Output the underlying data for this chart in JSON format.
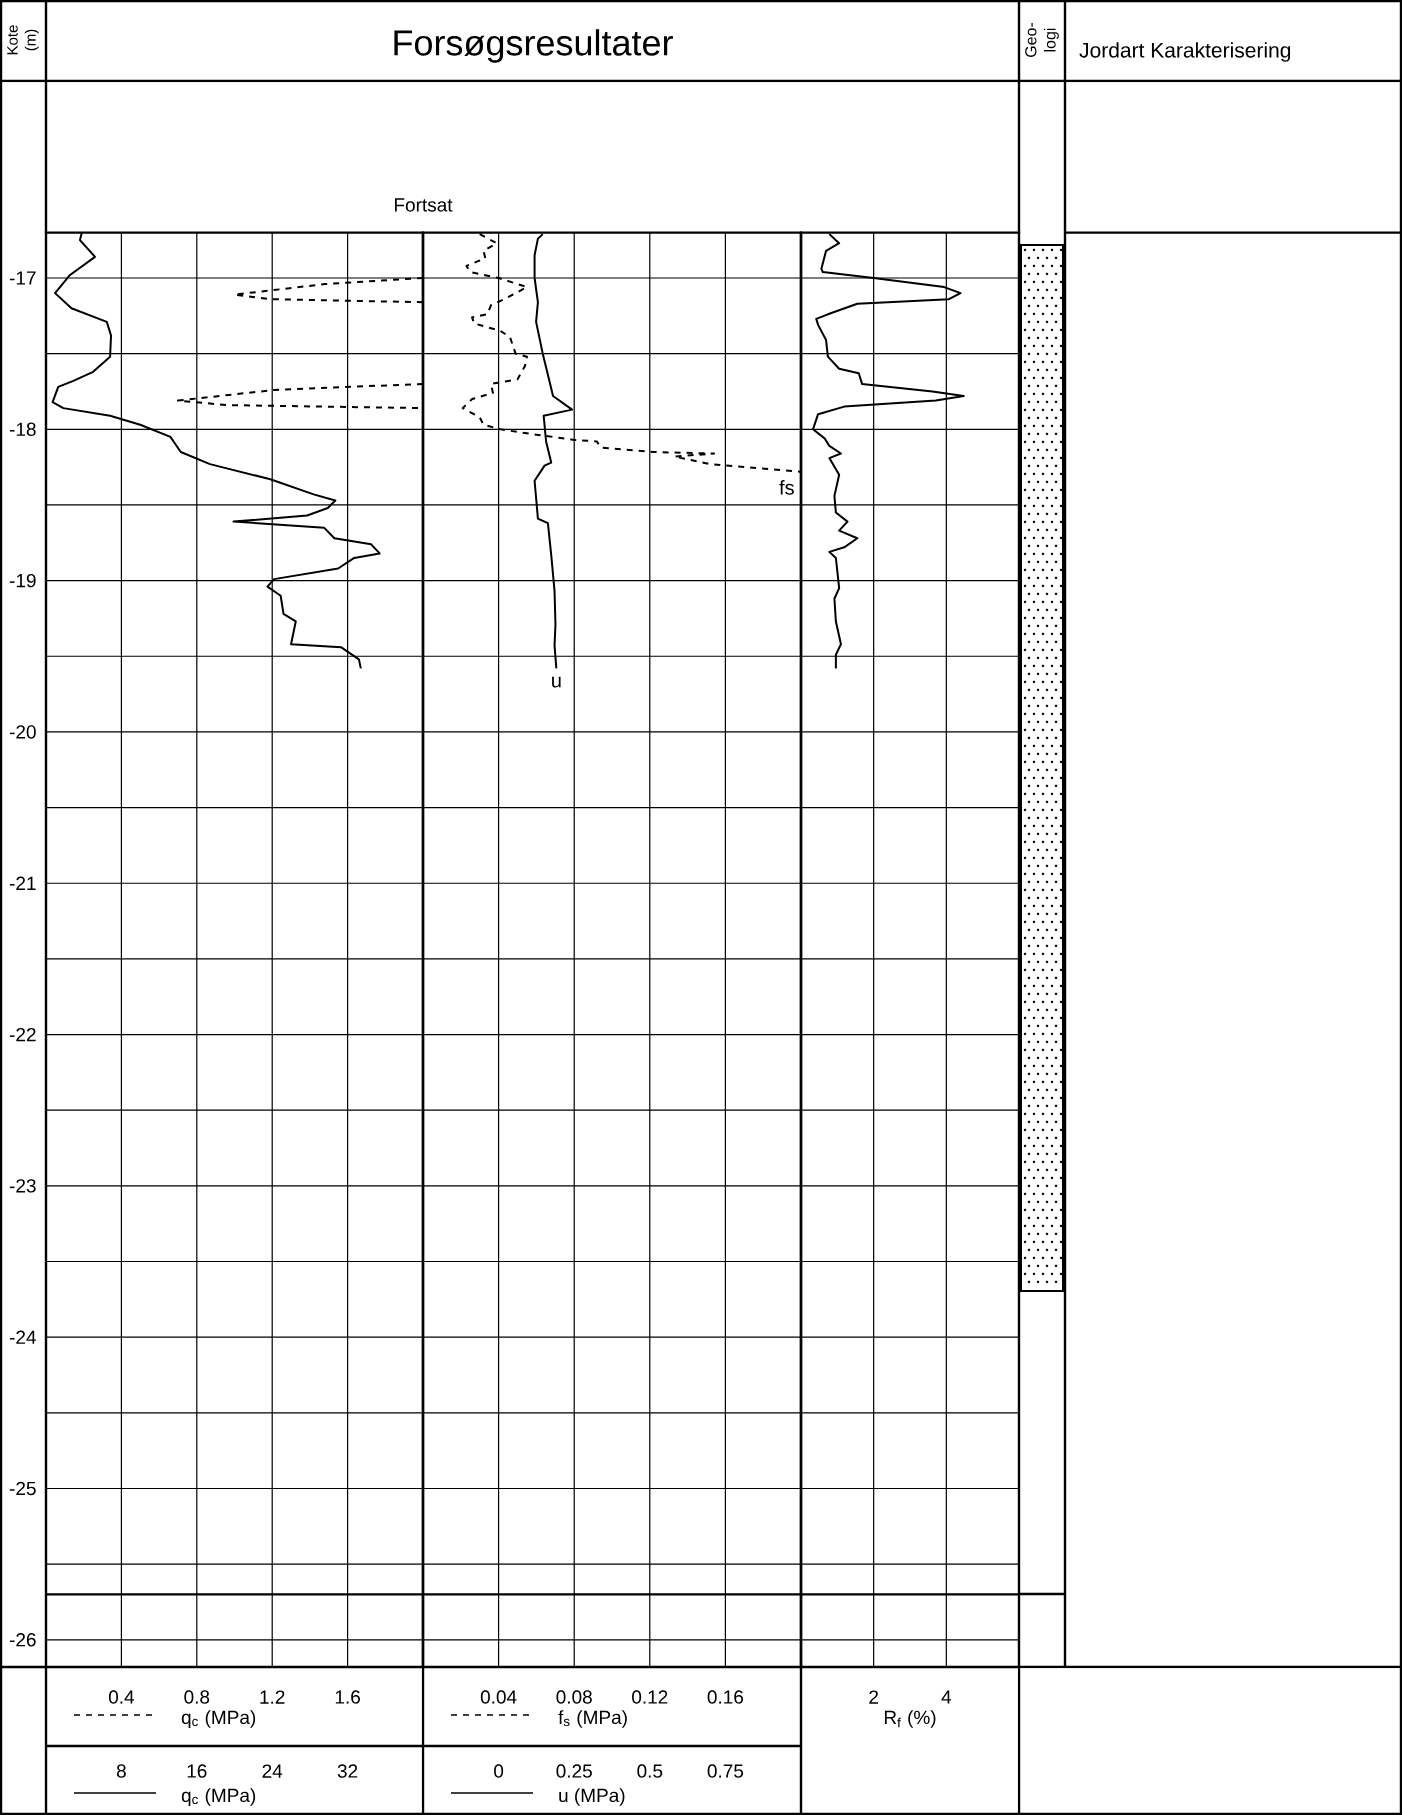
{
  "chart_data": [
    {
      "type": "line",
      "annotations": [
        "Fortsat"
      ],
      "ref_lines": [
        {
          "axis": "y",
          "value": -25.7,
          "color": "#000000"
        }
      ],
      "xlabel": "q$_{c}$ (MPa)",
      "x2label": "q$_{c}$ (MPa)",
      "xlim": [
        0,
        2
      ],
      "xticks": [
        0.4,
        0.8,
        1.2,
        1.6
      ],
      "x2lim": [
        0,
        40
      ],
      "x2ticks": [
        8,
        16,
        24,
        32
      ],
      "ylim": [
        -26.18,
        -16.7
      ],
      "yticks": [
        -17,
        {
          "value": -17.5,
          "label": null
        },
        -18,
        {
          "value": -18.5,
          "label": null
        },
        -19,
        {
          "value": -19.5,
          "label": null
        },
        -20,
        {
          "value": -20.5,
          "label": null
        },
        -21,
        {
          "value": -21.5,
          "label": null
        },
        -22,
        {
          "value": -22.5,
          "label": null
        },
        -23,
        {
          "value": -23.5,
          "label": null
        },
        -24,
        {
          "value": -24.5,
          "label": null
        },
        -25,
        {
          "value": -25.5,
          "label": null
        },
        -26
      ],
      "grid": true,
      "series": [
        {
          "color": "#000000",
          "line_style": "dashed",
          "x": [
            2.0,
            1.48,
            1.0,
            1.19,
            2.0,
            null,
            2.0,
            1.21,
            0.7,
            0.96,
            2.0
          ],
          "values": [
            -17.0,
            -17.04,
            -17.11,
            -17.14,
            -17.16,
            null,
            -17.7,
            -17.74,
            -17.81,
            -17.84,
            -17.86
          ]
        },
        {
          "color": "#000000",
          "line_style": "solid",
          "axis": "x2",
          "x": [
            3.8,
            3.6,
            5.2,
            2.55,
            0.96,
            2.7,
            6.45,
            6.9,
            6.8,
            5.0,
            2.9,
            1.3,
            0.7,
            1.84,
            6.8,
            10.0,
            13.2,
            14.3,
            17.4,
            23.8,
            28.4,
            30.7,
            29.9,
            27.7,
            19.9,
            29.5,
            30.6,
            34.5,
            35.4,
            32.7,
            31.0,
            24.2,
            23.5,
            24.9,
            25.2,
            26.5,
            26.0,
            31.3,
            33.2,
            33.4
          ],
          "values": [
            -16.7,
            -16.75,
            -16.86,
            -16.98,
            -17.1,
            -17.2,
            -17.29,
            -17.38,
            -17.52,
            -17.62,
            -17.68,
            -17.72,
            -17.82,
            -17.86,
            -17.91,
            -17.97,
            -18.05,
            -18.15,
            -18.23,
            -18.33,
            -18.43,
            -18.47,
            -18.52,
            -18.57,
            -18.61,
            -18.65,
            -18.72,
            -18.76,
            -18.82,
            -18.85,
            -18.92,
            -18.99,
            -19.04,
            -19.1,
            -19.22,
            -19.27,
            -19.42,
            -19.44,
            -19.52,
            -19.58
          ]
        }
      ]
    },
    {
      "type": "line",
      "xlabel": "f$_{s}$ (MPa)",
      "x2label": "u (MPa)",
      "ref_lines": [
        {
          "axis": "y",
          "value": -25.7,
          "color": "#000000"
        }
      ],
      "xlim": [
        0,
        0.2
      ],
      "xticks": [
        0.04,
        0.08,
        0.12,
        0.16
      ],
      "x2lim": [
        -0.25,
        1
      ],
      "x2ticks": [
        0,
        0.25,
        0.5,
        0.75
      ],
      "ylim": [
        -26.18,
        -16.7
      ],
      "yticks": [
        -17,
        -17.5,
        -18,
        -18.5,
        -19,
        -19.5,
        -20,
        -20.5,
        -21,
        -21.5,
        -22,
        -22.5,
        -23,
        -23.5,
        -24,
        -24.5,
        -25,
        -25.5,
        -26
      ],
      "tick_labels": "x",
      "grid": true,
      "series": [
        {
          "name": "fs",
          "color": "#000000",
          "line_style": "dashed",
          "x": [
            0.03,
            0.039,
            0.032,
            0.033,
            0.023,
            0.025,
            0.04,
            0.055,
            0.043,
            0.036,
            0.034,
            0.026,
            0.027,
            0.041,
            0.046,
            0.049,
            0.055,
            0.054,
            0.05,
            0.036,
            0.037,
            0.026,
            0.021,
            0.03,
            0.032,
            0.041,
            0.057,
            0.08,
            0.092,
            0.094,
            0.122,
            0.154,
            0.133,
            0.152,
            0.2
          ],
          "values": [
            -16.71,
            -16.77,
            -16.82,
            -16.87,
            -16.92,
            -16.96,
            -17.0,
            -17.06,
            -17.14,
            -17.18,
            -17.24,
            -17.26,
            -17.3,
            -17.35,
            -17.39,
            -17.5,
            -17.52,
            -17.58,
            -17.67,
            -17.7,
            -17.76,
            -17.8,
            -17.86,
            -17.92,
            -17.97,
            -18.0,
            -18.03,
            -18.07,
            -18.08,
            -18.12,
            -18.15,
            -18.16,
            -18.18,
            -18.23,
            -18.28
          ]
        },
        {
          "name": "u",
          "color": "#000000",
          "line_style": "solid",
          "axis": "x2",
          "x": [
            0.146,
            0.13,
            0.119,
            0.119,
            0.13,
            0.124,
            0.146,
            0.163,
            0.18,
            0.243,
            0.149,
            0.157,
            0.174,
            0.152,
            0.119,
            0.13,
            0.163,
            0.174,
            0.185,
            0.188,
            0.185,
            0.191
          ],
          "values": [
            -16.71,
            -16.74,
            -16.85,
            -17.0,
            -17.16,
            -17.29,
            -17.5,
            -17.64,
            -17.78,
            -17.87,
            -17.91,
            -18.08,
            -18.22,
            -18.24,
            -18.34,
            -18.59,
            -18.62,
            -18.83,
            -19.07,
            -19.29,
            -19.43,
            -19.58
          ]
        }
      ]
    },
    {
      "type": "line",
      "xlabel": "R$_{f}$ (%)",
      "xlim": [
        0,
        6
      ],
      "xticks": [
        2,
        4
      ],
      "ref_lines": [
        {
          "axis": "y",
          "value": -25.7,
          "color": "#000000"
        }
      ],
      "ylim": [
        -26.18,
        -16.7
      ],
      "yticks": [
        -17,
        -17.5,
        -18,
        -18.5,
        -19,
        -19.5,
        -20,
        -20.5,
        -21,
        -21.5,
        -22,
        -22.5,
        -23,
        -23.5,
        -24,
        -24.5,
        -25,
        -25.5,
        -26
      ],
      "tick_labels": "x",
      "grid": true,
      "series": [
        {
          "color": "#000000",
          "line_style": "solid",
          "x": [
            0.78,
            1.05,
            0.69,
            0.56,
            0.6,
            2.0,
            3.94,
            4.39,
            4.07,
            1.55,
            0.74,
            0.42,
            0.47,
            0.69,
            0.74,
            1.05,
            1.59,
            1.68,
            3.62,
            4.48,
            3.71,
            1.19,
            0.47,
            0.33,
            0.65,
            0.78,
            1.1,
            0.78,
            1.05,
            0.92,
            0.96,
            1.28,
            1.05,
            1.55,
            1.19,
            0.78,
            0.96,
            1.05,
            0.92,
            0.96,
            1.1,
            0.96,
            0.96
          ],
          "values": [
            -16.71,
            -16.77,
            -16.82,
            -16.94,
            -16.96,
            -17.0,
            -17.06,
            -17.1,
            -17.14,
            -17.17,
            -17.24,
            -17.27,
            -17.31,
            -17.41,
            -17.52,
            -17.6,
            -17.63,
            -17.7,
            -17.75,
            -17.78,
            -17.81,
            -17.85,
            -17.9,
            -18.0,
            -18.06,
            -18.11,
            -18.16,
            -18.19,
            -18.3,
            -18.44,
            -18.55,
            -18.61,
            -18.67,
            -18.72,
            -18.78,
            -18.81,
            -18.85,
            -19.05,
            -19.12,
            -19.27,
            -19.42,
            -19.49,
            -19.58
          ]
        }
      ]
    },
    {
      "type": "other",
      "annotations": [
        "Geo-logi",
        "Jordart Karakterisering",
        "Forsøgsresultater",
        "Kote (m)"
      ]
    }
  ]
}
